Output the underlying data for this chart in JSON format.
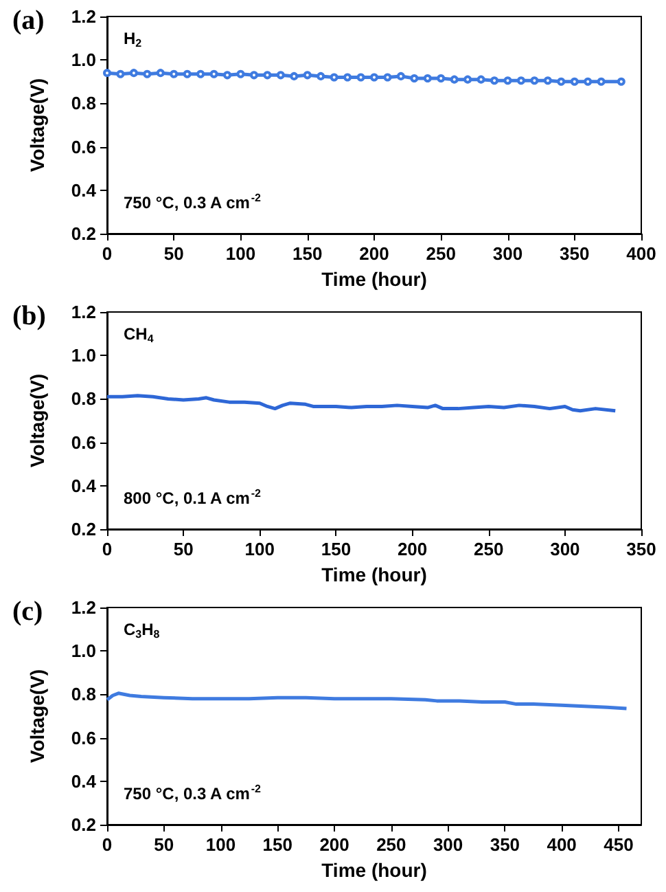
{
  "chart_data": [
    {
      "type": "line",
      "title": "(a)",
      "xlabel": "Time (hour)",
      "ylabel": "Voltage(V)",
      "annotations": [
        "H$_{2}$",
        "750 °C, 0.3 A cm$^{-2}$"
      ],
      "xlim": [
        0,
        400
      ],
      "xticks": [
        0,
        50,
        100,
        150,
        200,
        250,
        300,
        350,
        400
      ],
      "ylim": [
        0.2,
        1.2
      ],
      "yticks": [
        {
          "value": 0.2,
          "label": "0.2"
        },
        {
          "value": 0.4,
          "label": "0.4"
        },
        {
          "value": 0.6,
          "label": "0.6"
        },
        {
          "value": 0.8,
          "label": "0.8"
        },
        {
          "value": 1.0,
          "label": "1.0"
        },
        {
          "value": 1.2,
          "label": "1.2"
        }
      ],
      "grid": false,
      "marker": "circle",
      "series": [
        {
          "color": "#3f7be0",
          "x": [
            0,
            10,
            20,
            30,
            40,
            50,
            60,
            70,
            80,
            90,
            100,
            110,
            120,
            130,
            140,
            150,
            160,
            170,
            180,
            190,
            200,
            210,
            220,
            230,
            240,
            250,
            260,
            270,
            280,
            290,
            300,
            310,
            320,
            330,
            340,
            350,
            360,
            370,
            385
          ],
          "values": [
            0.94,
            0.935,
            0.94,
            0.935,
            0.94,
            0.935,
            0.935,
            0.935,
            0.935,
            0.93,
            0.935,
            0.93,
            0.93,
            0.93,
            0.925,
            0.93,
            0.925,
            0.92,
            0.92,
            0.92,
            0.92,
            0.92,
            0.925,
            0.915,
            0.915,
            0.915,
            0.91,
            0.91,
            0.91,
            0.905,
            0.905,
            0.905,
            0.905,
            0.905,
            0.9,
            0.9,
            0.9,
            0.9,
            0.9
          ]
        }
      ]
    },
    {
      "type": "line",
      "title": "(b)",
      "xlabel": "Time (hour)",
      "ylabel": "Voltage(V)",
      "annotations": [
        "CH$_{4}$",
        "800 °C, 0.1 A cm$^{-2}$"
      ],
      "xlim": [
        0,
        350
      ],
      "xticks": [
        0,
        50,
        100,
        150,
        200,
        250,
        300,
        350
      ],
      "ylim": [
        0.2,
        1.2
      ],
      "yticks": [
        {
          "value": 0.2,
          "label": "0.2"
        },
        {
          "value": 0.4,
          "label": "0.4"
        },
        {
          "value": 0.6,
          "label": "0.6"
        },
        {
          "value": 0.8,
          "label": "0.8"
        },
        {
          "value": 1.0,
          "label": "1.0"
        },
        {
          "value": 1.2,
          "label": "1.2"
        }
      ],
      "grid": false,
      "marker": "none",
      "series": [
        {
          "color": "#2e67d6",
          "x": [
            0,
            10,
            20,
            30,
            40,
            50,
            60,
            65,
            70,
            80,
            90,
            100,
            105,
            110,
            115,
            120,
            130,
            135,
            150,
            160,
            170,
            180,
            190,
            200,
            210,
            215,
            220,
            230,
            240,
            250,
            260,
            270,
            280,
            290,
            300,
            305,
            310,
            320,
            333
          ],
          "values": [
            0.81,
            0.81,
            0.815,
            0.81,
            0.8,
            0.795,
            0.8,
            0.805,
            0.795,
            0.785,
            0.785,
            0.78,
            0.765,
            0.755,
            0.77,
            0.78,
            0.775,
            0.765,
            0.765,
            0.76,
            0.765,
            0.765,
            0.77,
            0.765,
            0.76,
            0.77,
            0.755,
            0.755,
            0.76,
            0.765,
            0.76,
            0.77,
            0.765,
            0.755,
            0.765,
            0.75,
            0.745,
            0.755,
            0.745
          ]
        }
      ]
    },
    {
      "type": "line",
      "title": "(c)",
      "xlabel": "Time (hour)",
      "ylabel": "Voltage(V)",
      "annotations": [
        "C$_{3}$H$_{8}$",
        "750 °C, 0.3 A cm$^{-2}$"
      ],
      "xlim": [
        0,
        470
      ],
      "xticks": [
        0,
        50,
        100,
        150,
        200,
        250,
        300,
        350,
        400,
        450
      ],
      "ylim": [
        0.2,
        1.2
      ],
      "yticks": [
        {
          "value": 0.2,
          "label": "0.2"
        },
        {
          "value": 0.4,
          "label": "0.4"
        },
        {
          "value": 0.6,
          "label": "0.6"
        },
        {
          "value": 0.8,
          "label": "0.8"
        },
        {
          "value": 1.0,
          "label": "1.0"
        },
        {
          "value": 1.2,
          "label": "1.2"
        }
      ],
      "grid": false,
      "marker": "none",
      "series": [
        {
          "color": "#3f7be0",
          "x": [
            0,
            5,
            10,
            20,
            30,
            50,
            75,
            100,
            125,
            150,
            175,
            200,
            225,
            250,
            280,
            290,
            310,
            330,
            350,
            360,
            375,
            400,
            420,
            440,
            457
          ],
          "values": [
            0.775,
            0.795,
            0.805,
            0.795,
            0.79,
            0.785,
            0.78,
            0.78,
            0.78,
            0.785,
            0.785,
            0.78,
            0.78,
            0.78,
            0.775,
            0.77,
            0.77,
            0.765,
            0.765,
            0.755,
            0.755,
            0.75,
            0.745,
            0.74,
            0.735
          ]
        }
      ]
    }
  ]
}
